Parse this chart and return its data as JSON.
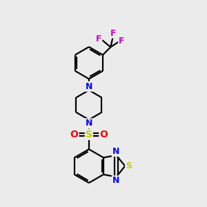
{
  "bg_color": "#ebebeb",
  "bond_color": "#000000",
  "n_color": "#0000ff",
  "s_color": "#cccc00",
  "o_color": "#ff0000",
  "f_color": "#cc00cc",
  "line_width": 1.6,
  "figsize": [
    3.0,
    3.0
  ],
  "dpi": 100,
  "xlim": [
    0,
    10
  ],
  "ylim": [
    0,
    10
  ]
}
